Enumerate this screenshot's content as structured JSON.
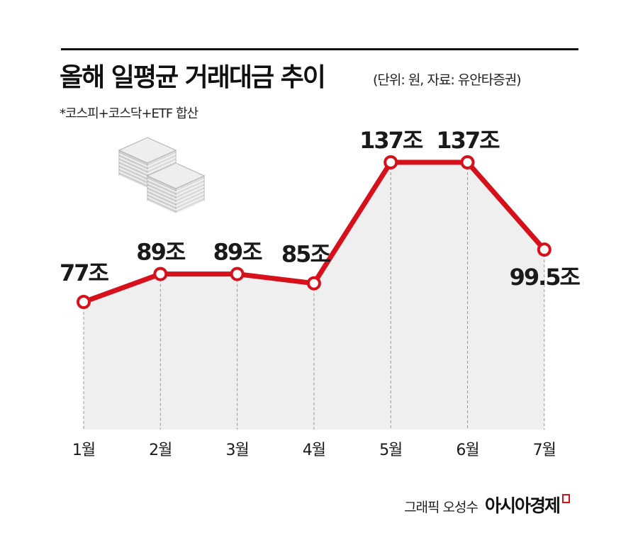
{
  "header": {
    "title": "올해 일평균 거래대금 추이",
    "unit_note": "(단위: 원, 자료: 유안타증권)",
    "sub_note": "*코스피+코스닥+ETF 합산"
  },
  "footer": {
    "credit": "그래픽 오성수",
    "brand": "아시아경제"
  },
  "colors": {
    "line": "#d6111b",
    "area": "#efefef",
    "marker_fill": "#ffffff",
    "text": "#1a1a1a"
  },
  "icons": {
    "decoration": "stacked-banknotes-icon"
  },
  "chart_data": {
    "type": "line",
    "title": "올해 일평균 거래대금 추이",
    "xlabel": "",
    "ylabel": "",
    "categories": [
      "1월",
      "2월",
      "3월",
      "4월",
      "5월",
      "6월",
      "7월"
    ],
    "series": [
      {
        "values": [
          77,
          89,
          89,
          85,
          137,
          137,
          99.5
        ],
        "labels": [
          "77조",
          "89조",
          "89조",
          "85조",
          "137조",
          "137조",
          "99.5조"
        ]
      }
    ],
    "ylim": [
      0,
      150
    ],
    "grid": false,
    "area_fill": true,
    "markers": "hollow-circle",
    "drop_lines": "dashed"
  }
}
